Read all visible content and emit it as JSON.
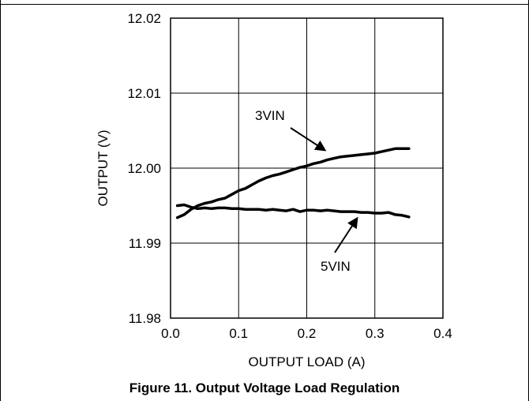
{
  "caption": "Figure 11. Output Voltage Load Regulation",
  "chart_data": {
    "type": "line",
    "title": "",
    "xlabel": "OUTPUT LOAD (A)",
    "ylabel": "OUTPUT (V)",
    "xlim": [
      0.0,
      0.4
    ],
    "ylim": [
      11.98,
      12.02
    ],
    "x_ticks": [
      "0.0",
      "0.1",
      "0.2",
      "0.3",
      "0.4"
    ],
    "y_ticks": [
      "11.98",
      "11.99",
      "12.00",
      "12.01",
      "12.02"
    ],
    "grid": true,
    "series": [
      {
        "name": "3VIN",
        "x": [
          0.01,
          0.02,
          0.03,
          0.04,
          0.05,
          0.06,
          0.07,
          0.08,
          0.09,
          0.1,
          0.11,
          0.12,
          0.13,
          0.14,
          0.15,
          0.16,
          0.17,
          0.18,
          0.19,
          0.2,
          0.21,
          0.22,
          0.23,
          0.24,
          0.25,
          0.26,
          0.27,
          0.28,
          0.29,
          0.3,
          0.31,
          0.32,
          0.33,
          0.34,
          0.35
        ],
        "values": [
          11.9934,
          11.9938,
          11.9945,
          11.995,
          11.9953,
          11.9955,
          11.9958,
          11.996,
          11.9965,
          11.997,
          11.9973,
          11.9978,
          11.9983,
          11.9987,
          11.999,
          11.9992,
          11.9995,
          11.9998,
          12.0001,
          12.0003,
          12.0006,
          12.0008,
          12.0011,
          12.0013,
          12.0015,
          12.0016,
          12.0017,
          12.0018,
          12.0019,
          12.002,
          12.0022,
          12.0024,
          12.0026,
          12.0026,
          12.0026
        ]
      },
      {
        "name": "5VIN",
        "x": [
          0.01,
          0.02,
          0.03,
          0.04,
          0.05,
          0.06,
          0.07,
          0.08,
          0.09,
          0.1,
          0.11,
          0.12,
          0.13,
          0.14,
          0.15,
          0.16,
          0.17,
          0.18,
          0.19,
          0.2,
          0.21,
          0.22,
          0.23,
          0.24,
          0.25,
          0.26,
          0.27,
          0.28,
          0.29,
          0.3,
          0.31,
          0.32,
          0.33,
          0.34,
          0.35
        ],
        "values": [
          11.995,
          11.9951,
          11.9948,
          11.9946,
          11.9947,
          11.9946,
          11.9947,
          11.9947,
          11.9946,
          11.9946,
          11.9945,
          11.9945,
          11.9945,
          11.9944,
          11.9945,
          11.9944,
          11.9943,
          11.9945,
          11.9942,
          11.9944,
          11.9944,
          11.9943,
          11.9944,
          11.9943,
          11.9942,
          11.9942,
          11.9942,
          11.9941,
          11.9941,
          11.994,
          11.994,
          11.9941,
          11.9938,
          11.9937,
          11.9935
        ]
      }
    ],
    "annotations": [
      {
        "text": "3VIN",
        "series": "3VIN"
      },
      {
        "text": "5VIN",
        "series": "5VIN"
      }
    ]
  }
}
